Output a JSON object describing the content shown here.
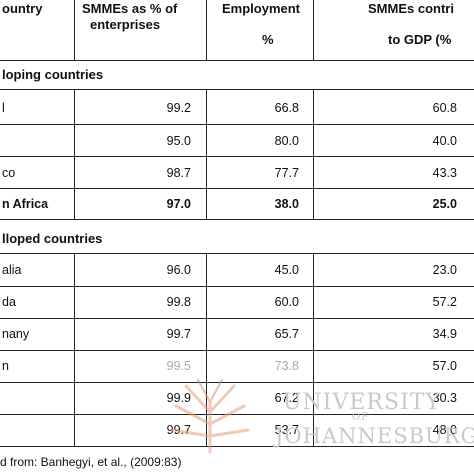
{
  "table": {
    "headers": {
      "col1": "ountry",
      "col2_line1": "SMMEs as % of",
      "col2_line2": "enterprises",
      "col3_line1": "Employment",
      "col3_line2": "%",
      "col4_line1": "SMMEs contri",
      "col4_line2": "to GDP (%"
    },
    "sections": [
      {
        "title": "loping countries",
        "rows": [
          {
            "country": "l",
            "enterprises": "99.2",
            "employment": "66.8",
            "gdp": "60.8",
            "bold": false
          },
          {
            "country": "",
            "enterprises": "95.0",
            "employment": "80.0",
            "gdp": "40.0",
            "bold": false
          },
          {
            "country": "co",
            "enterprises": "98.7",
            "employment": "77.7",
            "gdp": "43.3",
            "bold": false
          },
          {
            "country": "n Africa",
            "enterprises": "97.0",
            "employment": "38.0",
            "gdp": "25.0",
            "bold": true
          }
        ]
      },
      {
        "title": "lloped countries",
        "rows": [
          {
            "country": "alia",
            "enterprises": "96.0",
            "employment": "45.0",
            "gdp": "23.0",
            "bold": false
          },
          {
            "country": "da",
            "enterprises": "99.8",
            "employment": "60.0",
            "gdp": "57.2",
            "bold": false
          },
          {
            "country": "nany",
            "enterprises": "99.7",
            "employment": "65.7",
            "gdp": "34.9",
            "bold": false
          },
          {
            "country": "n",
            "enterprises": "99.5",
            "employment": "73.8",
            "gdp": "57.0",
            "bold": false
          },
          {
            "country": "",
            "enterprises": "99.9",
            "employment": "67.2",
            "gdp": "30.3",
            "bold": false
          },
          {
            "country": "",
            "enterprises": "99.7",
            "employment": "53.7",
            "gdp": "48.0",
            "bold": false
          }
        ]
      }
    ]
  },
  "source": "d from: Banhegyi, et al., (2009:83)",
  "watermark": {
    "line1": "UNIVERSITY",
    "line2": "OF",
    "line3": "JOHANNESBURG",
    "color": "#c9c9c9"
  }
}
